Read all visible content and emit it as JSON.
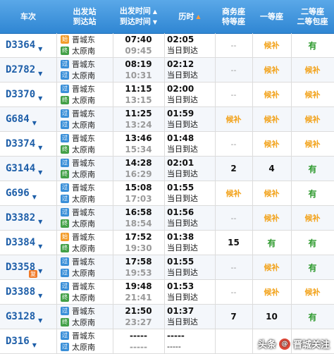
{
  "header": {
    "train": "车次",
    "station_top": "出发站",
    "station_bottom": "到达站",
    "time_top": "出发时间",
    "time_bottom": "到达时间",
    "duration": "历时",
    "biz_top": "商务座",
    "biz_bottom": "特等座",
    "first": "一等座",
    "second_top": "二等座",
    "second_bottom": "二等包座"
  },
  "rows": [
    {
      "code": "D3364",
      "from_badge": "始",
      "from": "晋城东",
      "to_badge": "终",
      "to": "太原南",
      "dep": "07:40",
      "arr": "09:45",
      "dur": "02:05",
      "day": "当日到达",
      "biz": "--",
      "first": "候补",
      "second": "有"
    },
    {
      "code": "D2782",
      "from_badge": "过",
      "from": "晋城东",
      "to_badge": "过",
      "to": "太原南",
      "dep": "08:19",
      "arr": "10:31",
      "dur": "02:12",
      "day": "当日到达",
      "biz": "--",
      "first": "候补",
      "second": "候补"
    },
    {
      "code": "D3370",
      "from_badge": "过",
      "from": "晋城东",
      "to_badge": "终",
      "to": "太原南",
      "dep": "11:15",
      "arr": "13:15",
      "dur": "02:00",
      "day": "当日到达",
      "biz": "--",
      "first": "候补",
      "second": "候补"
    },
    {
      "code": "G684",
      "from_badge": "过",
      "from": "晋城东",
      "to_badge": "过",
      "to": "太原南",
      "dep": "11:25",
      "arr": "13:24",
      "dur": "01:59",
      "day": "当日到达",
      "biz": "候补",
      "first": "候补",
      "second": "候补"
    },
    {
      "code": "D3374",
      "from_badge": "过",
      "from": "晋城东",
      "to_badge": "终",
      "to": "太原南",
      "dep": "13:46",
      "arr": "15:34",
      "dur": "01:48",
      "day": "当日到达",
      "biz": "--",
      "first": "候补",
      "second": "候补"
    },
    {
      "code": "G3144",
      "from_badge": "过",
      "from": "晋城东",
      "to_badge": "终",
      "to": "太原南",
      "dep": "14:28",
      "arr": "16:29",
      "dur": "02:01",
      "day": "当日到达",
      "biz": "2",
      "first": "4",
      "second": "有"
    },
    {
      "code": "G696",
      "from_badge": "过",
      "from": "晋城东",
      "to_badge": "过",
      "to": "太原南",
      "dep": "15:08",
      "arr": "17:03",
      "dur": "01:55",
      "day": "当日到达",
      "biz": "候补",
      "first": "候补",
      "second": "有"
    },
    {
      "code": "D3382",
      "from_badge": "过",
      "from": "晋城东",
      "to_badge": "终",
      "to": "太原南",
      "dep": "16:58",
      "arr": "18:54",
      "dur": "01:56",
      "day": "当日到达",
      "biz": "--",
      "first": "候补",
      "second": "候补"
    },
    {
      "code": "D3384",
      "from_badge": "始",
      "from": "晋城东",
      "to_badge": "终",
      "to": "太原南",
      "dep": "17:52",
      "arr": "19:30",
      "dur": "01:38",
      "day": "当日到达",
      "biz": "15",
      "first": "有",
      "second": "有"
    },
    {
      "code": "D3358",
      "extra": "复",
      "from_badge": "过",
      "from": "晋城东",
      "to_badge": "过",
      "to": "太原南",
      "dep": "17:58",
      "arr": "19:53",
      "dur": "01:55",
      "day": "当日到达",
      "biz": "--",
      "first": "候补",
      "second": "有"
    },
    {
      "code": "D3388",
      "from_badge": "过",
      "from": "晋城东",
      "to_badge": "终",
      "to": "太原南",
      "dep": "19:48",
      "arr": "21:41",
      "dur": "01:53",
      "day": "当日到达",
      "biz": "--",
      "first": "候补",
      "second": "候补"
    },
    {
      "code": "G3128",
      "from_badge": "过",
      "from": "晋城东",
      "to_badge": "终",
      "to": "太原南",
      "dep": "21:50",
      "arr": "23:27",
      "dur": "01:37",
      "day": "当日到达",
      "biz": "7",
      "first": "10",
      "second": "有"
    },
    {
      "code": "D316",
      "from_badge": "过",
      "from": "晋城东",
      "to_badge": "过",
      "to": "太原南",
      "dep": "-----",
      "arr": "-----",
      "dur": "-----",
      "day": "-----",
      "biz": "",
      "first": "",
      "second": ""
    }
  ],
  "watermark": {
    "prefix": "头条",
    "at": "@",
    "name": "晋城关注"
  },
  "colors": {
    "header": "#2f86d3",
    "available": "#2e9a2e",
    "waitlist": "#f2a21a",
    "code": "#1d5ea8"
  }
}
